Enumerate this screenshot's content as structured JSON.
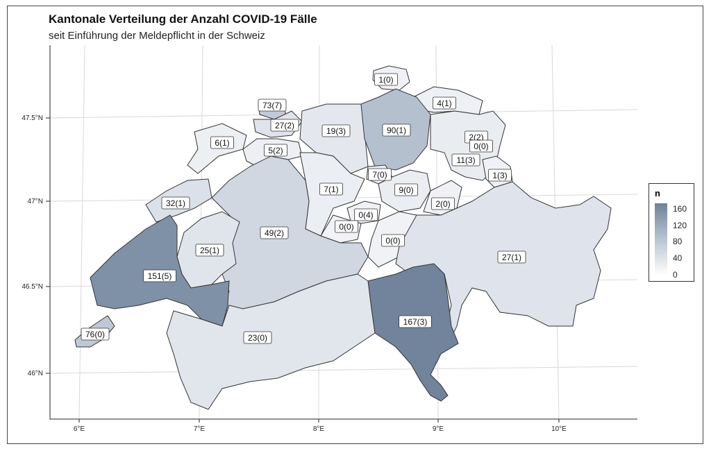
{
  "title": "Kantonale Verteilung der Anzahl COVID-19 Fälle",
  "subtitle": "seit Einführung der Meldepflicht in der Schweiz",
  "axes": {
    "lat_ticks": [
      "47.5°N",
      "47°N",
      "46.5°N",
      "46°N"
    ],
    "lon_ticks": [
      "6°E",
      "7°E",
      "8°E",
      "9°E",
      "10°E"
    ]
  },
  "legend": {
    "title": "n",
    "ticks": [
      "160",
      "120",
      "80",
      "40",
      "0"
    ],
    "color_min": "#ffffff",
    "color_max": "#6e8299"
  },
  "cantons": [
    {
      "label": "1(0)",
      "n": 1
    },
    {
      "label": "73(7)",
      "n": 73
    },
    {
      "label": "4(1)",
      "n": 4
    },
    {
      "label": "27(2)",
      "n": 27
    },
    {
      "label": "19(3)",
      "n": 19
    },
    {
      "label": "90(1)",
      "n": 90
    },
    {
      "label": "6(1)",
      "n": 6
    },
    {
      "label": "5(2)",
      "n": 5
    },
    {
      "label": "2(2)",
      "n": 2
    },
    {
      "label": "0(0)",
      "n": 0
    },
    {
      "label": "11(3)",
      "n": 11
    },
    {
      "label": "7(0)",
      "n": 7
    },
    {
      "label": "1(3)",
      "n": 1
    },
    {
      "label": "7(1)",
      "n": 7
    },
    {
      "label": "9(0)",
      "n": 9
    },
    {
      "label": "32(1)",
      "n": 32
    },
    {
      "label": "2(0)",
      "n": 2
    },
    {
      "label": "0(4)",
      "n": 0
    },
    {
      "label": "0(0)",
      "n": 0
    },
    {
      "label": "49(2)",
      "n": 49
    },
    {
      "label": "25(1)",
      "n": 25
    },
    {
      "label": "0(0)",
      "n": 0
    },
    {
      "label": "27(1)",
      "n": 27
    },
    {
      "label": "151(5)",
      "n": 151
    },
    {
      "label": "167(3)",
      "n": 167
    },
    {
      "label": "76(0)",
      "n": 76
    },
    {
      "label": "23(0)",
      "n": 23
    }
  ]
}
